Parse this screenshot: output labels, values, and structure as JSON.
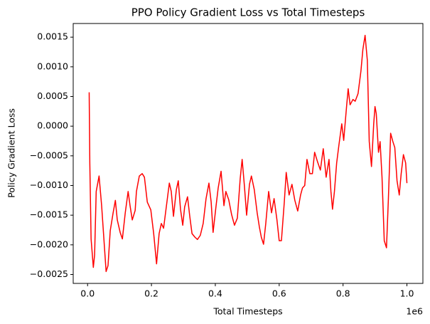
{
  "chart_data": {
    "type": "line",
    "title": "PPO Policy Gradient Loss vs Total Timesteps",
    "x_label": "Total Timesteps",
    "y_label": "Policy Gradient Loss",
    "x_offset_text": "1e6",
    "color": "#ff0000",
    "grid": false,
    "xlim": [
      -45000,
      1050000
    ],
    "ylim": [
      -0.00265,
      0.00173
    ],
    "xticks": [
      {
        "value": 0,
        "label": "0.0"
      },
      {
        "value": 200000,
        "label": "0.2"
      },
      {
        "value": 400000,
        "label": "0.4"
      },
      {
        "value": 600000,
        "label": "0.6"
      },
      {
        "value": 800000,
        "label": "0.8"
      },
      {
        "value": 1000000,
        "label": "1.0"
      }
    ],
    "yticks": [
      {
        "value": -0.0025,
        "label": "−0.0025"
      },
      {
        "value": -0.002,
        "label": "−0.0020"
      },
      {
        "value": -0.0015,
        "label": "−0.0015"
      },
      {
        "value": -0.001,
        "label": "−0.0010"
      },
      {
        "value": -0.0005,
        "label": "−0.0005"
      },
      {
        "value": 0,
        "label": "0.0000"
      },
      {
        "value": 0.0005,
        "label": "0.0005"
      },
      {
        "value": 0.001,
        "label": "0.0010"
      },
      {
        "value": 0.0015,
        "label": "0.0015"
      }
    ],
    "x": [
      5000,
      7000,
      11000,
      18000,
      22000,
      27000,
      36000,
      44000,
      58000,
      64000,
      71000,
      80000,
      87000,
      93000,
      102000,
      109000,
      118000,
      127000,
      133000,
      140000,
      149000,
      153000,
      162000,
      171000,
      178000,
      187000,
      198000,
      207000,
      216000,
      224000,
      231000,
      238000,
      247000,
      256000,
      262000,
      269000,
      278000,
      284000,
      291000,
      298000,
      304000,
      313000,
      320000,
      327000,
      336000,
      344000,
      353000,
      362000,
      371000,
      380000,
      387000,
      393000,
      402000,
      409000,
      418000,
      427000,
      433000,
      442000,
      451000,
      460000,
      469000,
      478000,
      484000,
      491000,
      498000,
      507000,
      513000,
      522000,
      531000,
      538000,
      544000,
      551000,
      558000,
      567000,
      576000,
      584000,
      593000,
      600000,
      607000,
      616000,
      622000,
      631000,
      640000,
      649000,
      658000,
      667000,
      673000,
      680000,
      687000,
      696000,
      704000,
      711000,
      720000,
      729000,
      738000,
      747000,
      756000,
      762000,
      767000,
      773000,
      780000,
      787000,
      796000,
      802000,
      811000,
      816000,
      822000,
      831000,
      838000,
      847000,
      856000,
      862000,
      869000,
      876000,
      882000,
      889000,
      896000,
      900000,
      904000,
      911000,
      916000,
      922000,
      929000,
      936000,
      942000,
      949000,
      956000,
      962000,
      969000,
      976000,
      982000,
      989000,
      996000,
      1000000
    ],
    "values": [
      0.00057,
      -0.00062,
      -0.0019,
      -0.00238,
      -0.00217,
      -0.0011,
      -0.00084,
      -0.00134,
      -0.00245,
      -0.00235,
      -0.00176,
      -0.00146,
      -0.00125,
      -0.00158,
      -0.00179,
      -0.0019,
      -0.00146,
      -0.0011,
      -0.00134,
      -0.00158,
      -0.00142,
      -0.0011,
      -0.00084,
      -0.0008,
      -0.00086,
      -0.00128,
      -0.00141,
      -0.00181,
      -0.00232,
      -0.00181,
      -0.00164,
      -0.00172,
      -0.00134,
      -0.00096,
      -0.0011,
      -0.00152,
      -0.00107,
      -0.00092,
      -0.0014,
      -0.00167,
      -0.00136,
      -0.00119,
      -0.00152,
      -0.00181,
      -0.00187,
      -0.00191,
      -0.00184,
      -0.00164,
      -0.00122,
      -0.00096,
      -0.00128,
      -0.00179,
      -0.00136,
      -0.00104,
      -0.00076,
      -0.00134,
      -0.0011,
      -0.00124,
      -0.00149,
      -0.00167,
      -0.00155,
      -0.00088,
      -0.00056,
      -0.001,
      -0.0015,
      -0.00098,
      -0.00084,
      -0.00107,
      -0.00146,
      -0.0017,
      -0.00187,
      -0.00199,
      -0.00164,
      -0.0011,
      -0.00146,
      -0.00122,
      -0.00158,
      -0.00193,
      -0.00193,
      -0.00128,
      -0.00078,
      -0.00116,
      -0.00098,
      -0.00125,
      -0.00143,
      -0.00116,
      -0.00104,
      -0.001,
      -0.00056,
      -0.0008,
      -0.0008,
      -0.00044,
      -0.0006,
      -0.00074,
      -0.00038,
      -0.00086,
      -0.00056,
      -0.0011,
      -0.0014,
      -0.0011,
      -0.00062,
      -0.00032,
      4e-05,
      -0.00024,
      0.00033,
      0.00063,
      0.00036,
      0.00045,
      0.00042,
      0.00055,
      0.00093,
      0.00129,
      0.00153,
      0.00111,
      -0.00026,
      -0.00068,
      4e-05,
      0.00033,
      0.00021,
      -0.00044,
      -0.00026,
      -0.00086,
      -0.00193,
      -0.00205,
      -0.00122,
      -0.00012,
      -0.00026,
      -0.00036,
      -0.00092,
      -0.00116,
      -0.0008,
      -0.00048,
      -0.00062,
      -0.00096
    ]
  }
}
